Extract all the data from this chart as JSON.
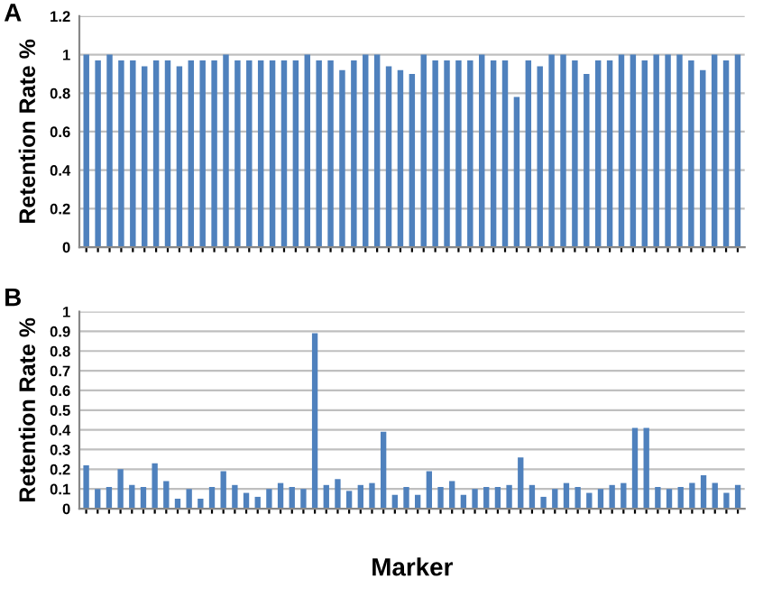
{
  "chart_data": [
    {
      "type": "bar",
      "title": "A",
      "ylabel": "Retention Rate %",
      "color": "#4f81bd",
      "grid": "y",
      "ylim": [
        0,
        1.2
      ],
      "yticks": [
        0,
        0.2,
        0.4,
        0.6,
        0.8,
        1,
        1.2
      ],
      "categories": [
        null,
        null,
        null,
        null,
        null,
        null,
        null,
        null,
        null,
        null,
        null,
        null,
        null,
        null,
        null,
        null,
        null,
        null,
        null,
        null,
        null,
        null,
        null,
        null,
        null,
        null,
        null,
        null,
        null,
        null,
        null,
        null,
        null,
        null,
        null,
        null,
        null,
        null,
        null,
        null,
        null,
        null,
        null,
        null,
        null,
        null,
        null,
        null,
        null,
        null,
        null,
        null,
        null,
        null,
        null,
        null,
        null
      ],
      "values": [
        1.0,
        0.97,
        1.0,
        0.97,
        0.97,
        0.94,
        0.97,
        0.97,
        0.94,
        0.97,
        0.97,
        0.97,
        1.0,
        0.97,
        0.97,
        0.97,
        0.97,
        0.97,
        0.97,
        1.0,
        0.97,
        0.97,
        0.92,
        0.97,
        1.0,
        1.0,
        0.94,
        0.92,
        0.9,
        1.0,
        0.97,
        0.97,
        0.97,
        0.97,
        1.0,
        0.97,
        0.97,
        0.78,
        0.97,
        0.94,
        1.0,
        1.0,
        0.97,
        0.9,
        0.97,
        0.97,
        1.0,
        1.0,
        0.97,
        1.0,
        1.0,
        1.0,
        0.97,
        0.92,
        1.0,
        0.97,
        1.0
      ]
    },
    {
      "type": "bar",
      "title": "B",
      "ylabel": "Retention Rate %",
      "xlabel": "Marker",
      "color": "#4f81bd",
      "grid": "y",
      "ylim": [
        0,
        1
      ],
      "yticks": [
        0,
        0.1,
        0.2,
        0.3,
        0.4,
        0.5,
        0.6,
        0.7,
        0.8,
        0.9,
        1
      ],
      "categories": [
        null,
        null,
        null,
        null,
        null,
        null,
        null,
        null,
        null,
        null,
        null,
        null,
        null,
        null,
        null,
        null,
        null,
        null,
        null,
        null,
        null,
        null,
        null,
        null,
        null,
        null,
        null,
        null,
        null,
        null,
        null,
        null,
        null,
        null,
        null,
        null,
        null,
        null,
        null,
        null,
        null,
        null,
        null,
        null,
        null,
        null,
        null,
        null,
        null,
        null,
        null,
        null,
        null,
        null,
        null,
        null,
        null,
        null
      ],
      "values": [
        0.22,
        0.1,
        0.11,
        0.2,
        0.12,
        0.11,
        0.23,
        0.14,
        0.05,
        0.1,
        0.05,
        0.11,
        0.19,
        0.12,
        0.08,
        0.06,
        0.1,
        0.13,
        0.11,
        0.1,
        0.89,
        0.12,
        0.15,
        0.09,
        0.12,
        0.13,
        0.39,
        0.07,
        0.11,
        0.07,
        0.19,
        0.11,
        0.14,
        0.07,
        0.1,
        0.11,
        0.11,
        0.12,
        0.26,
        0.12,
        0.06,
        0.1,
        0.13,
        0.11,
        0.08,
        0.1,
        0.12,
        0.13,
        0.41,
        0.41,
        0.11,
        0.1,
        0.11,
        0.13,
        0.17,
        0.13,
        0.08,
        0.12
      ]
    }
  ]
}
